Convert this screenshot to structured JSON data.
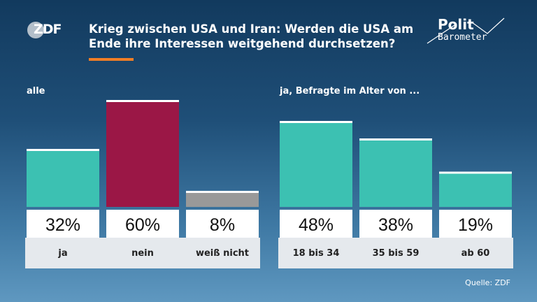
{
  "header": {
    "logo_text": "ZDF",
    "title_line1": "Krieg zwischen USA und Iran: Werden die USA am",
    "title_line2": "Ende ihre Interessen weitgehend durchsetzen?",
    "brand_line1": "Polit",
    "brand_line2": "Barometer",
    "accent_color": "#f07e26"
  },
  "labels": {
    "group_all": "alle",
    "group_age": "ja, Befragte im Alter von ..."
  },
  "footer": {
    "source": "Quelle: ZDF"
  },
  "colors": {
    "ja": "#3cc1b2",
    "nein": "#9b1746",
    "weiss_nicht": "#999999",
    "band": "#e5e9ed",
    "value_box": "#ffffff"
  },
  "chart_data": {
    "type": "bar",
    "unit": "%",
    "ylim": [
      0,
      100
    ],
    "groups": [
      {
        "label": "alle",
        "categories": [
          "ja",
          "nein",
          "weiß nicht"
        ],
        "values": [
          32,
          60,
          8
        ],
        "display": [
          "32%",
          "60%",
          "8%"
        ],
        "colors": [
          "#3cc1b2",
          "#9b1746",
          "#999999"
        ]
      },
      {
        "label": "ja, Befragte im Alter von ...",
        "categories": [
          "18 bis 34",
          "35 bis 59",
          "ab 60"
        ],
        "values": [
          48,
          38,
          19
        ],
        "display": [
          "48%",
          "38%",
          "19%"
        ],
        "colors": [
          "#3cc1b2",
          "#3cc1b2",
          "#3cc1b2"
        ]
      }
    ]
  }
}
